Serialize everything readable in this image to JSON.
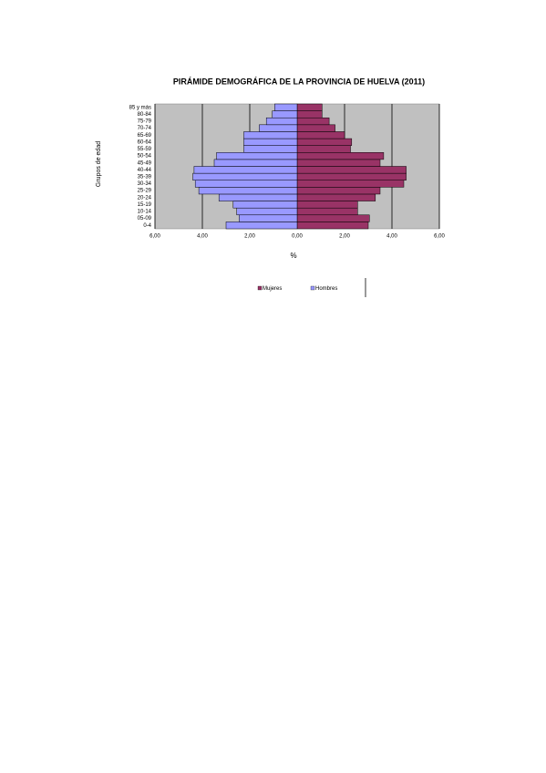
{
  "chart_data": {
    "type": "pyramid",
    "title": "PIRÁMIDE DEMOGRÁFICA DE LA PROVINCIA DE HUELVA (2011)",
    "x_label": "%",
    "y_label": "Grupos de edad",
    "categories": [
      "0-4",
      "05-09",
      "10-14",
      "15-19",
      "20-24",
      "25-29",
      "30-34",
      "35-39",
      "40-44",
      "45-49",
      "50-54",
      "55-59",
      "60-64",
      "65-69",
      "70-74",
      "75-79",
      "80-84",
      "85 y más"
    ],
    "series": [
      {
        "name": "Mujeres",
        "color": "#993366",
        "values": [
          3.0,
          3.05,
          2.55,
          2.55,
          3.3,
          3.5,
          4.5,
          4.6,
          4.6,
          3.5,
          3.65,
          2.25,
          2.3,
          2.0,
          1.6,
          1.35,
          1.05,
          1.05
        ]
      },
      {
        "name": "Hombres",
        "color": "#9999ff",
        "values": [
          -3.0,
          -2.45,
          -2.55,
          -2.7,
          -3.3,
          -4.15,
          -4.3,
          -4.4,
          -4.35,
          -3.5,
          -3.4,
          -2.25,
          -2.25,
          -2.25,
          -1.6,
          -1.3,
          -1.05,
          -0.95
        ]
      }
    ],
    "xlim": [
      -6,
      6
    ],
    "xticks": [
      {
        "value": -6,
        "label": "6,00"
      },
      {
        "value": -4,
        "label": "4,00"
      },
      {
        "value": -2,
        "label": "2,00"
      },
      {
        "value": 0,
        "label": "0,00"
      },
      {
        "value": 2,
        "label": "2,00"
      },
      {
        "value": 4,
        "label": "4,00"
      },
      {
        "value": 6,
        "label": "6,00"
      }
    ],
    "grid": true
  }
}
